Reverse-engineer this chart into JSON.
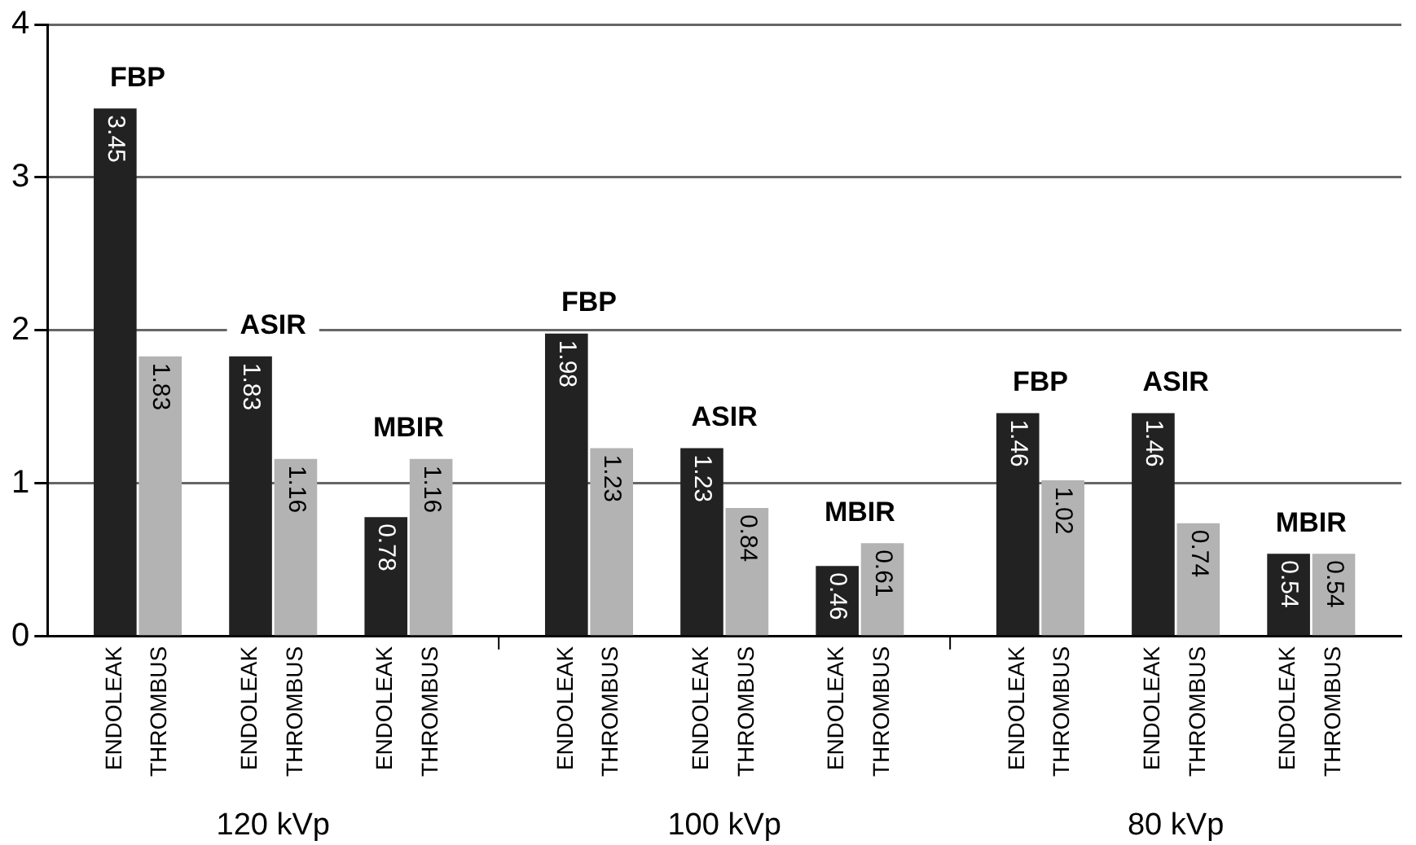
{
  "chart_data": {
    "type": "bar",
    "categories": [
      null,
      "ENDOLEAK",
      "THROMBUS",
      null,
      "ENDOLEAK",
      "THROMBUS",
      null,
      "ENDOLEAK",
      "THROMBUS",
      null,
      null,
      "ENDOLEAK",
      "THROMBUS",
      null,
      "ENDOLEAK",
      "THROMBUS",
      null,
      "ENDOLEAK",
      "THROMBUS",
      null,
      null,
      "ENDOLEAK",
      "THROMBUS",
      null,
      "ENDOLEAK",
      "THROMBUS",
      null,
      "ENDOLEAK",
      "THROMBUS",
      null
    ],
    "values": [
      null,
      3.45,
      1.83,
      null,
      1.83,
      1.16,
      null,
      0.78,
      1.16,
      null,
      null,
      1.98,
      1.23,
      null,
      1.23,
      0.84,
      null,
      0.46,
      0.61,
      null,
      null,
      1.46,
      1.02,
      null,
      1.46,
      0.74,
      null,
      0.54,
      0.54,
      null
    ],
    "colors": [
      "#222222",
      "#222222",
      "#b3b3b3",
      "#222222",
      "#222222",
      "#b3b3b3",
      "#222222",
      "#222222",
      "#b3b3b3",
      "#222222",
      "#222222",
      "#222222",
      "#b3b3b3",
      "#222222",
      "#222222",
      "#b3b3b3",
      "#222222",
      "#222222",
      "#b3b3b3",
      "#222222",
      "#222222",
      "#222222",
      "#b3b3b3",
      "#222222",
      "#222222",
      "#b3b3b3",
      "#222222",
      "#222222",
      "#b3b3b3",
      "#222222"
    ],
    "ylim": [
      0,
      4
    ],
    "yticks": [
      0,
      1,
      2,
      3,
      4
    ],
    "grid": "y",
    "legend": false,
    "data_labels": true,
    "annotations": [
      "FBP",
      "ASIR",
      "MBIR",
      "FBP",
      "ASIR",
      "MBIR",
      "FBP",
      "ASIR",
      "MBIR",
      "120 kVp",
      "100 kVp",
      "80 kVp"
    ]
  }
}
